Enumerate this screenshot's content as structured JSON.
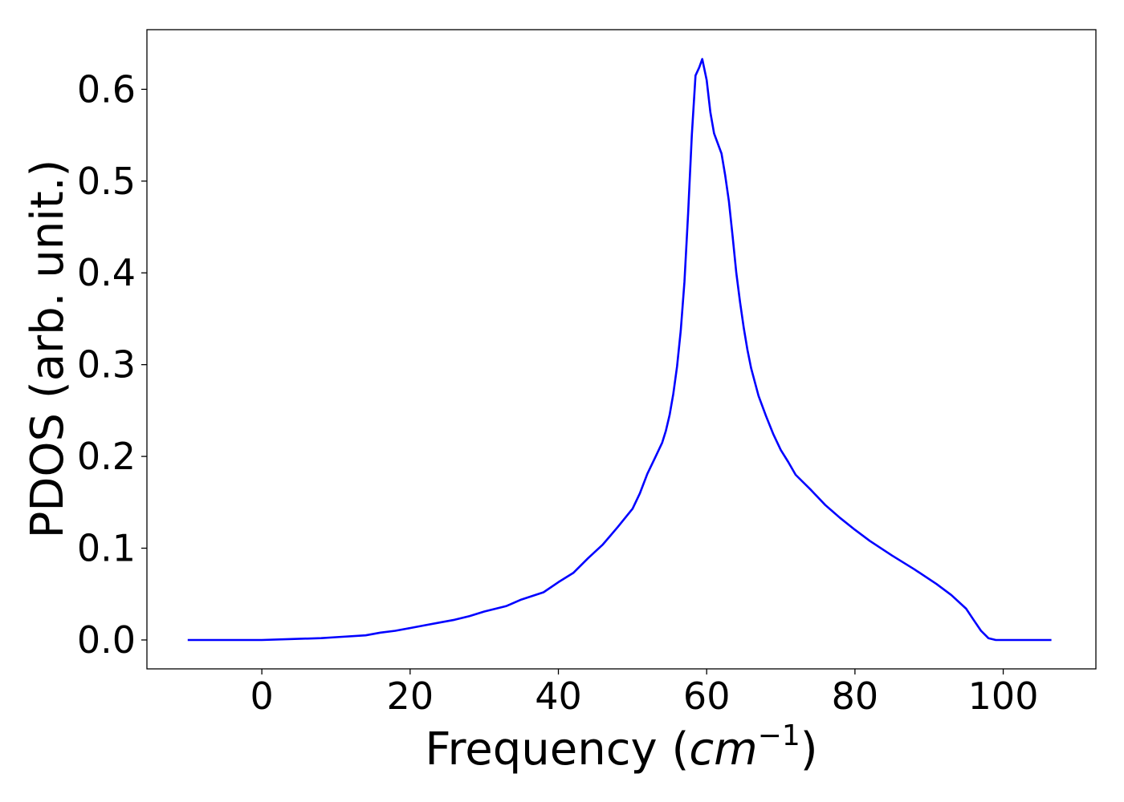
{
  "chart_data": {
    "type": "line",
    "title": "",
    "xlabel_main": "Frequency (",
    "xlabel_unit": "cm",
    "xlabel_sup": "−1",
    "xlabel_close": ")",
    "ylabel": "PDOS (arb. unit.)",
    "xlim": [
      -15.5,
      112.5
    ],
    "ylim": [
      -0.0315,
      0.665
    ],
    "xticks": [
      0,
      20,
      40,
      60,
      80,
      100
    ],
    "xtick_labels": [
      "0",
      "20",
      "40",
      "60",
      "80",
      "100"
    ],
    "yticks": [
      0.0,
      0.1,
      0.2,
      0.3,
      0.4,
      0.5,
      0.6
    ],
    "ytick_labels": [
      "0.0",
      "0.1",
      "0.2",
      "0.3",
      "0.4",
      "0.5",
      "0.6"
    ],
    "grid": false,
    "legend": "none",
    "series": [
      {
        "color": "#0000ff",
        "x": [
          -10,
          0,
          4,
          8,
          10,
          14,
          16,
          18,
          20,
          22,
          24,
          26,
          28,
          30,
          33,
          35,
          38,
          40,
          42,
          44,
          46,
          48,
          50,
          51,
          52,
          53,
          54,
          54.5,
          55,
          55.5,
          56,
          56.5,
          57,
          57.5,
          58,
          58.5,
          59,
          59.4,
          60,
          60.5,
          61,
          62,
          62.5,
          63,
          63.5,
          64,
          64.5,
          65,
          65.5,
          66,
          67,
          68,
          69,
          70,
          71,
          72,
          74,
          76,
          78,
          80,
          82,
          85,
          88,
          91,
          93,
          95,
          96,
          97,
          98,
          99,
          100,
          102,
          104,
          106.5
        ],
        "y": [
          0.0,
          0.0,
          0.001,
          0.002,
          0.003,
          0.005,
          0.008,
          0.01,
          0.013,
          0.016,
          0.019,
          0.022,
          0.026,
          0.031,
          0.037,
          0.044,
          0.052,
          0.063,
          0.073,
          0.089,
          0.104,
          0.123,
          0.143,
          0.16,
          0.181,
          0.198,
          0.215,
          0.228,
          0.245,
          0.268,
          0.298,
          0.337,
          0.39,
          0.465,
          0.55,
          0.615,
          0.624,
          0.633,
          0.61,
          0.575,
          0.552,
          0.53,
          0.506,
          0.478,
          0.44,
          0.4,
          0.368,
          0.34,
          0.316,
          0.296,
          0.266,
          0.244,
          0.224,
          0.207,
          0.194,
          0.18,
          0.164,
          0.147,
          0.133,
          0.12,
          0.108,
          0.092,
          0.077,
          0.061,
          0.049,
          0.034,
          0.022,
          0.01,
          0.002,
          0.0,
          0.0,
          0.0,
          0.0,
          0.0
        ]
      }
    ]
  }
}
